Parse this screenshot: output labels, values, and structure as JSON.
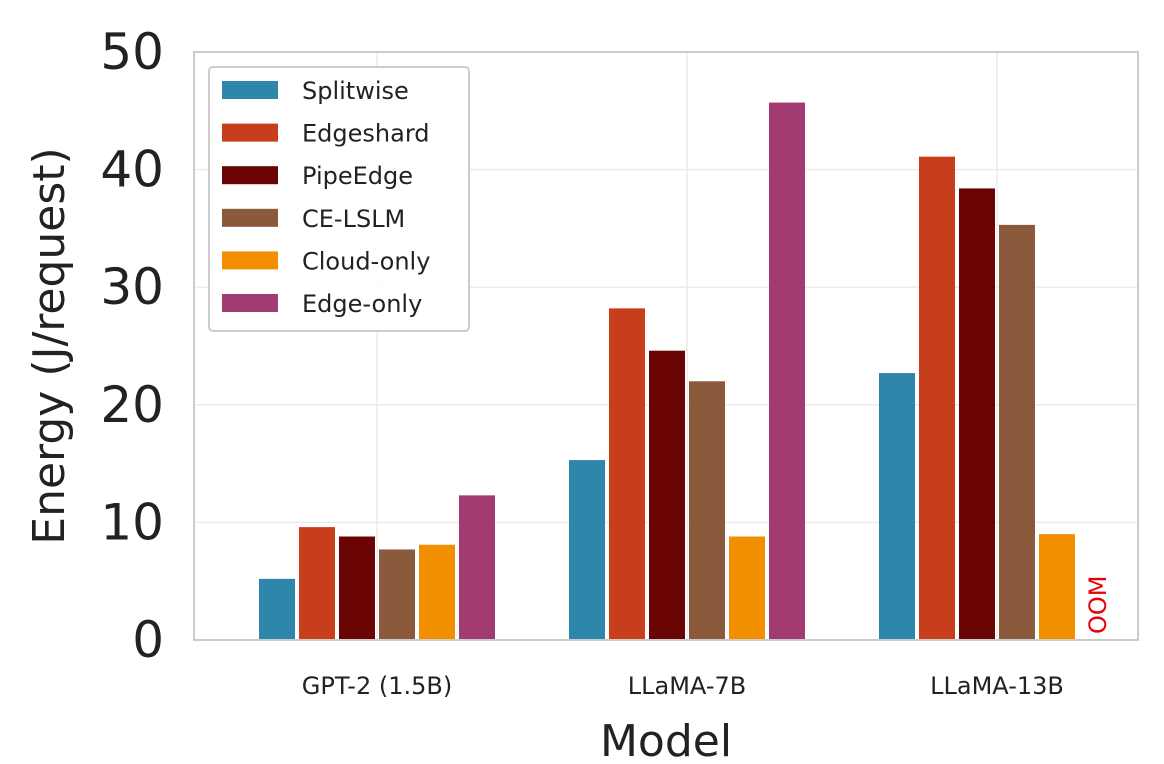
{
  "chart_data": {
    "type": "bar",
    "title": "",
    "xlabel": "Model",
    "ylabel": "Energy (J/request)",
    "ylim": [
      0,
      50
    ],
    "yticks": [
      "0",
      "10",
      "20",
      "30",
      "40",
      "50"
    ],
    "grid": true,
    "legend_position": "top-left",
    "categories": [
      "GPT-2 (1.5B)",
      "LLaMA-7B",
      "LLaMA-13B"
    ],
    "series": [
      {
        "name": "Splitwise",
        "color": "#2e86ab",
        "values": [
          5.2,
          15.3,
          22.7
        ]
      },
      {
        "name": "Edgeshard",
        "color": "#c73e1d",
        "values": [
          9.6,
          28.2,
          41.1
        ]
      },
      {
        "name": "PipeEdge",
        "color": "#6a0404",
        "values": [
          8.8,
          24.6,
          38.4
        ]
      },
      {
        "name": "CE-LSLM",
        "color": "#8b5a3c",
        "values": [
          7.7,
          22.0,
          35.3
        ]
      },
      {
        "name": "Cloud-only",
        "color": "#f18f01",
        "values": [
          8.1,
          8.8,
          9.0
        ]
      },
      {
        "name": "Edge-only",
        "color": "#a23b72",
        "values": [
          12.3,
          45.7,
          null
        ]
      }
    ],
    "annotations": [
      {
        "text": "OOM",
        "category": "LLaMA-13B",
        "series": "Edge-only"
      }
    ]
  }
}
